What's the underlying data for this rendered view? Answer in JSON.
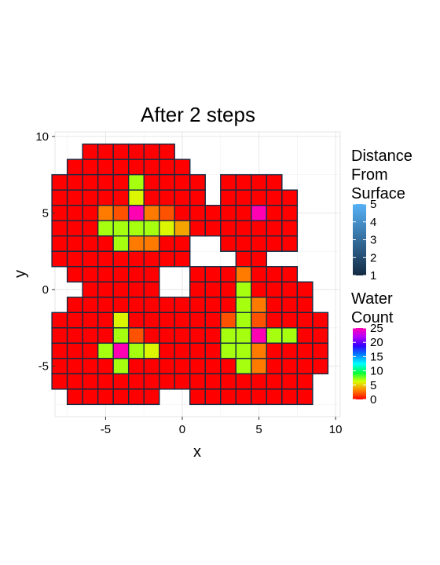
{
  "chart_data": {
    "type": "heatmap",
    "title": "After 2 steps",
    "xlabel": "x",
    "ylabel": "y",
    "xlim": [
      -8.3,
      10.3
    ],
    "ylim": [
      -8.3,
      10.3
    ],
    "x_ticks": [
      -5,
      0,
      5,
      10
    ],
    "y_ticks": [
      -5,
      0,
      5,
      10
    ],
    "x_tick_labels": [
      "-5",
      "0",
      "5",
      "10"
    ],
    "y_tick_labels": [
      "-5",
      "0",
      "5",
      "10"
    ],
    "grid": true,
    "background": "#ffffff",
    "cell_fill_scale": {
      "name": "Water Count",
      "range": [
        0,
        25
      ],
      "breaks": [
        0,
        5,
        10,
        15,
        20,
        25
      ],
      "labels": [
        "0",
        "5",
        "10",
        "15",
        "20",
        "25"
      ],
      "colors": [
        "#ff0000",
        "#ff8000",
        "#d9ff00",
        "#00ff40",
        "#00ffff",
        "#0080ff",
        "#3300ff",
        "#b300ff",
        "#ff00b3"
      ]
    },
    "cell_border_scale": {
      "name": "Distance From Surface",
      "title_lines": [
        "Distance",
        "From",
        "Surface"
      ],
      "range": [
        1,
        5
      ],
      "breaks": [
        1,
        2,
        3,
        4,
        5
      ],
      "labels": [
        "1",
        "2",
        "3",
        "4",
        "5"
      ],
      "colors": [
        "#132b43",
        "#56b1f7"
      ]
    },
    "rows": [
      {
        "y": 9,
        "x_start": -6,
        "x_end": -1
      },
      {
        "y": 8,
        "x_start": -7,
        "x_end": 0
      },
      {
        "y": 7,
        "x_start": -8,
        "x_end": 1
      },
      {
        "y": 7,
        "x_start": 3,
        "x_end": 6
      },
      {
        "y": 6,
        "x_start": -8,
        "x_end": 1
      },
      {
        "y": 6,
        "x_start": 3,
        "x_end": 7
      },
      {
        "y": 5,
        "x_start": -8,
        "x_end": 7
      },
      {
        "y": 4,
        "x_start": -8,
        "x_end": 7
      },
      {
        "y": 3,
        "x_start": -8,
        "x_end": 0
      },
      {
        "y": 3,
        "x_start": 3,
        "x_end": 7
      },
      {
        "y": 2,
        "x_start": -8,
        "x_end": 0
      },
      {
        "y": 2,
        "x_start": 4,
        "x_end": 5
      },
      {
        "y": 1,
        "x_start": -7,
        "x_end": -2
      },
      {
        "y": 1,
        "x_start": 1,
        "x_end": 7
      },
      {
        "y": 0,
        "x_start": -6,
        "x_end": -2
      },
      {
        "y": 0,
        "x_start": 1,
        "x_end": 8
      },
      {
        "y": -1,
        "x_start": -7,
        "x_end": -1
      },
      {
        "y": -1,
        "x_start": 0,
        "x_end": 8
      },
      {
        "y": -2,
        "x_start": -8,
        "x_end": 9
      },
      {
        "y": -3,
        "x_start": -8,
        "x_end": 9
      },
      {
        "y": -4,
        "x_start": -8,
        "x_end": 9
      },
      {
        "y": -5,
        "x_start": -8,
        "x_end": 9
      },
      {
        "y": -6,
        "x_start": -8,
        "x_end": -1
      },
      {
        "y": -6,
        "x_start": 0,
        "x_end": 8
      },
      {
        "y": -7,
        "x_start": -7,
        "x_end": -2
      },
      {
        "y": -7,
        "x_start": 1,
        "x_end": 8
      }
    ],
    "default_water_count": 0,
    "water_counts": [
      {
        "x": -3,
        "y": 7,
        "v": 7
      },
      {
        "x": -5,
        "y": 5,
        "v": 3
      },
      {
        "x": -4,
        "y": 5,
        "v": 2
      },
      {
        "x": -3,
        "y": 5,
        "v": 25
      },
      {
        "x": -2,
        "y": 5,
        "v": 3
      },
      {
        "x": -1,
        "y": 5,
        "v": 2
      },
      {
        "x": -3,
        "y": 6,
        "v": 6
      },
      {
        "x": -5,
        "y": 4,
        "v": 7
      },
      {
        "x": -4,
        "y": 4,
        "v": 7
      },
      {
        "x": -3,
        "y": 4,
        "v": 7
      },
      {
        "x": -2,
        "y": 4,
        "v": 7
      },
      {
        "x": -1,
        "y": 4,
        "v": 6
      },
      {
        "x": 0,
        "y": 4,
        "v": 4
      },
      {
        "x": -4,
        "y": 3,
        "v": 7
      },
      {
        "x": -3,
        "y": 3,
        "v": 3
      },
      {
        "x": -2,
        "y": 3,
        "v": 3
      },
      {
        "x": 5,
        "y": 5,
        "v": 25
      },
      {
        "x": 4,
        "y": 1,
        "v": 3
      },
      {
        "x": 4,
        "y": 0,
        "v": 7
      },
      {
        "x": 4,
        "y": -1,
        "v": 7
      },
      {
        "x": 5,
        "y": -1,
        "v": 3
      },
      {
        "x": 3,
        "y": -2,
        "v": 2
      },
      {
        "x": 4,
        "y": -2,
        "v": 7
      },
      {
        "x": 5,
        "y": -2,
        "v": 2
      },
      {
        "x": 3,
        "y": -3,
        "v": 7
      },
      {
        "x": 4,
        "y": -3,
        "v": 7
      },
      {
        "x": 5,
        "y": -3,
        "v": 25
      },
      {
        "x": 6,
        "y": -3,
        "v": 7
      },
      {
        "x": 7,
        "y": -3,
        "v": 7
      },
      {
        "x": 3,
        "y": -4,
        "v": 7
      },
      {
        "x": 4,
        "y": -4,
        "v": 7
      },
      {
        "x": 5,
        "y": -4,
        "v": 3
      },
      {
        "x": 4,
        "y": -5,
        "v": 7
      },
      {
        "x": 5,
        "y": -5,
        "v": 3
      },
      {
        "x": -4,
        "y": -2,
        "v": 6
      },
      {
        "x": -4,
        "y": -3,
        "v": 7
      },
      {
        "x": -3,
        "y": -3,
        "v": 2
      },
      {
        "x": -5,
        "y": -4,
        "v": 7
      },
      {
        "x": -4,
        "y": -4,
        "v": 25
      },
      {
        "x": -3,
        "y": -4,
        "v": 7
      },
      {
        "x": -2,
        "y": -4,
        "v": 6
      },
      {
        "x": -4,
        "y": -5,
        "v": 7
      }
    ]
  }
}
